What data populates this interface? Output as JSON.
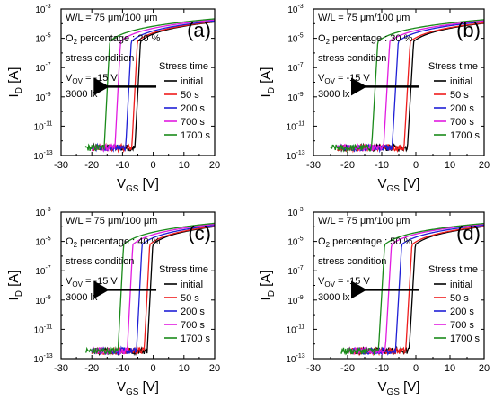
{
  "figure": {
    "stress_condition_label": "stress condition",
    "vov_label": "V",
    "vov_sub": "OV",
    "vov_value": " = -15 V",
    "illum": "3000 lx",
    "legend_title": "Stress time"
  },
  "chart_data": [
    {
      "type": "line",
      "panel_label": "(a)",
      "wl": "W/L = 75 μm/100 μm",
      "o2_pre": "O",
      "o2_sub": "2",
      "o2_post": " percentage : 20 %",
      "xlabel_main": "V",
      "xlabel_sub": "GS",
      "xlabel_unit": " [V]",
      "ylabel_main": "I",
      "ylabel_sub": "D",
      "ylabel_unit": " [A]",
      "x_ticks": [
        "-30",
        "-20",
        "-10",
        "0",
        "10",
        "20"
      ],
      "y_ticks": [
        {
          "base": "10",
          "exp": "-3"
        },
        {
          "base": "10",
          "exp": "-5"
        },
        {
          "base": "10",
          "exp": "-7"
        },
        {
          "base": "10",
          "exp": "-9"
        },
        {
          "base": "10",
          "exp": "-11"
        },
        {
          "base": "10",
          "exp": "-13"
        }
      ],
      "xlim": [
        -30,
        20
      ],
      "ylim_log10": [
        -13,
        -3
      ],
      "yscale": "log",
      "legend_position": "right-middle",
      "series": [
        {
          "name": "initial",
          "color": "#000000",
          "v_on": -6.0,
          "off_start": -20
        },
        {
          "name": "50 s",
          "color": "#ee1c1c",
          "v_on": -7.0,
          "off_start": -20
        },
        {
          "name": "200 s",
          "color": "#1f1fd6",
          "v_on": -9.0,
          "off_start": -20
        },
        {
          "name": "700 s",
          "color": "#e11be0",
          "v_on": -12.5,
          "off_start": -20
        },
        {
          "name": "1700 s",
          "color": "#1a8a1a",
          "v_on": -16.0,
          "off_start": -22
        }
      ]
    },
    {
      "type": "line",
      "panel_label": "(b)",
      "wl": "W/L = 75 μm/100 μm",
      "o2_pre": "O",
      "o2_sub": "2",
      "o2_post": " percentage : 30 %",
      "xlabel_main": "V",
      "xlabel_sub": "GS",
      "xlabel_unit": " [V]",
      "ylabel_main": "I",
      "ylabel_sub": "D",
      "ylabel_unit": " [A]",
      "x_ticks": [
        "-30",
        "-20",
        "-10",
        "0",
        "10",
        "20"
      ],
      "y_ticks": [
        {
          "base": "10",
          "exp": "-3"
        },
        {
          "base": "10",
          "exp": "-5"
        },
        {
          "base": "10",
          "exp": "-7"
        },
        {
          "base": "10",
          "exp": "-9"
        },
        {
          "base": "10",
          "exp": "-11"
        },
        {
          "base": "10",
          "exp": "-13"
        }
      ],
      "xlim": [
        -30,
        20
      ],
      "ylim_log10": [
        -13,
        -3
      ],
      "yscale": "log",
      "legend_position": "right-middle",
      "series": [
        {
          "name": "initial",
          "color": "#000000",
          "v_on": -2.5,
          "off_start": -23
        },
        {
          "name": "50 s",
          "color": "#ee1c1c",
          "v_on": -3.5,
          "off_start": -23
        },
        {
          "name": "200 s",
          "color": "#1f1fd6",
          "v_on": -7.0,
          "off_start": -23
        },
        {
          "name": "700 s",
          "color": "#e11be0",
          "v_on": -9.5,
          "off_start": -23
        },
        {
          "name": "1700 s",
          "color": "#1a8a1a",
          "v_on": -13.0,
          "off_start": -25
        }
      ]
    },
    {
      "type": "line",
      "panel_label": "(c)",
      "wl": "W/L = 75 μm/100 μm",
      "o2_pre": "O",
      "o2_sub": "2",
      "o2_post": " percentage : 40 %",
      "xlabel_main": "V",
      "xlabel_sub": "GS",
      "xlabel_unit": " [V]",
      "ylabel_main": "I",
      "ylabel_sub": "D",
      "ylabel_unit": " [A]",
      "x_ticks": [
        "-30",
        "-20",
        "-10",
        "0",
        "10",
        "20"
      ],
      "y_ticks": [
        {
          "base": "10",
          "exp": "-3"
        },
        {
          "base": "10",
          "exp": "-5"
        },
        {
          "base": "10",
          "exp": "-7"
        },
        {
          "base": "10",
          "exp": "-9"
        },
        {
          "base": "10",
          "exp": "-11"
        },
        {
          "base": "10",
          "exp": "-13"
        }
      ],
      "xlim": [
        -30,
        20
      ],
      "ylim_log10": [
        -13,
        -3
      ],
      "yscale": "log",
      "legend_position": "right-middle",
      "series": [
        {
          "name": "initial",
          "color": "#000000",
          "v_on": -2.0,
          "off_start": -20
        },
        {
          "name": "50 s",
          "color": "#ee1c1c",
          "v_on": -3.0,
          "off_start": -20
        },
        {
          "name": "200 s",
          "color": "#1f1fd6",
          "v_on": -5.5,
          "off_start": -20
        },
        {
          "name": "700 s",
          "color": "#e11be0",
          "v_on": -8.5,
          "off_start": -20
        },
        {
          "name": "1700 s",
          "color": "#1a8a1a",
          "v_on": -11.5,
          "off_start": -22
        }
      ]
    },
    {
      "type": "line",
      "panel_label": "(d)",
      "wl": "W/L = 75 μm/100 μm",
      "o2_pre": "O",
      "o2_sub": "2",
      "o2_post": " percentage : 50 %",
      "xlabel_main": "V",
      "xlabel_sub": "GS",
      "xlabel_unit": " [V]",
      "ylabel_main": "I",
      "ylabel_sub": "D",
      "ylabel_unit": " [A]",
      "x_ticks": [
        "-30",
        "-20",
        "-10",
        "0",
        "10",
        "20"
      ],
      "y_ticks": [
        {
          "base": "10",
          "exp": "-3"
        },
        {
          "base": "10",
          "exp": "-5"
        },
        {
          "base": "10",
          "exp": "-7"
        },
        {
          "base": "10",
          "exp": "-9"
        },
        {
          "base": "10",
          "exp": "-11"
        },
        {
          "base": "10",
          "exp": "-13"
        }
      ],
      "xlim": [
        -30,
        20
      ],
      "ylim_log10": [
        -13,
        -3
      ],
      "yscale": "log",
      "legend_position": "right-middle",
      "series": [
        {
          "name": "initial",
          "color": "#000000",
          "v_on": -2.0,
          "off_start": -20
        },
        {
          "name": "50 s",
          "color": "#ee1c1c",
          "v_on": -3.0,
          "off_start": -20
        },
        {
          "name": "200 s",
          "color": "#1f1fd6",
          "v_on": -6.0,
          "off_start": -20
        },
        {
          "name": "700 s",
          "color": "#e11be0",
          "v_on": -9.0,
          "off_start": -20
        },
        {
          "name": "1700 s",
          "color": "#1a8a1a",
          "v_on": -11.0,
          "off_start": -22
        }
      ]
    }
  ]
}
